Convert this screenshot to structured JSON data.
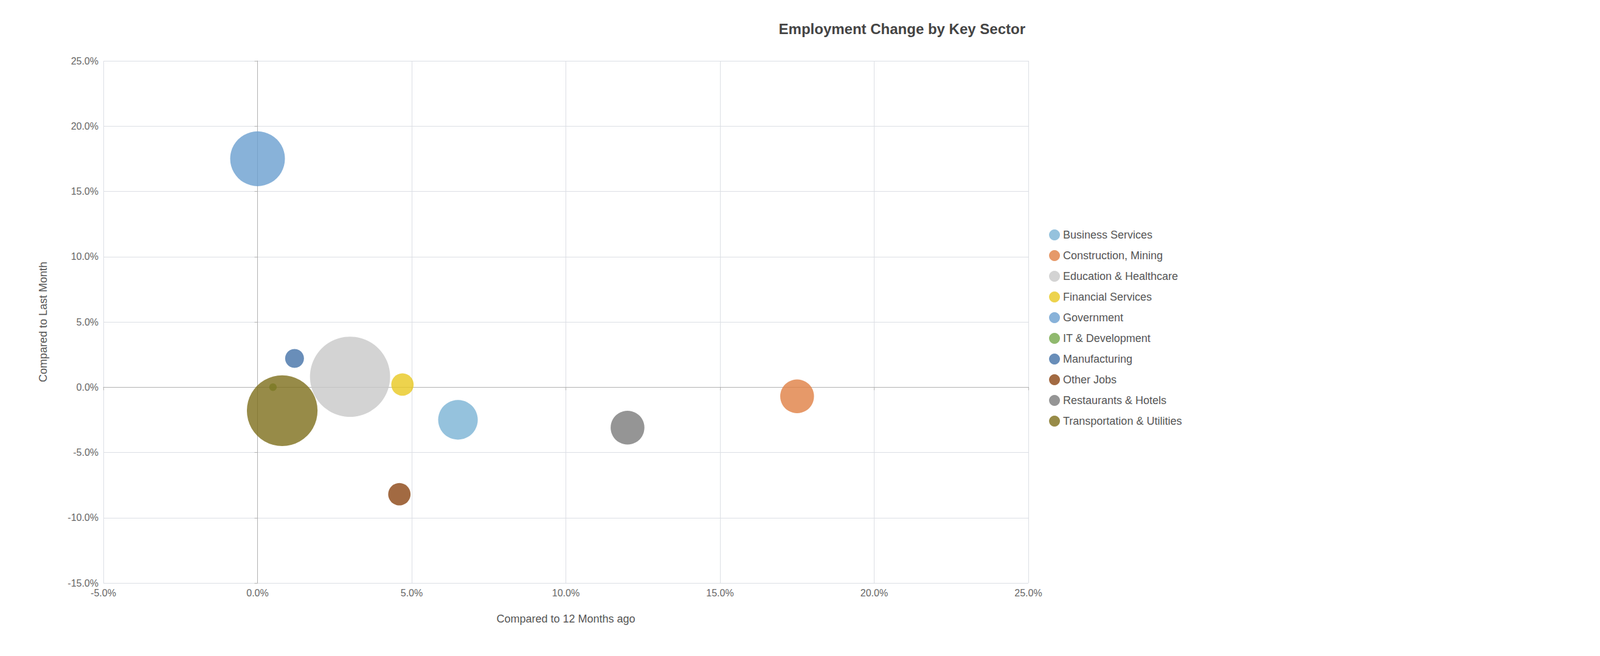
{
  "chart_data": {
    "type": "scatter",
    "title": "Employment Change by Key Sector",
    "xlabel": "Compared to 12 Months ago",
    "ylabel": "Compared to Last Month",
    "xlim": [
      -0.05,
      0.25
    ],
    "ylim": [
      -0.15,
      0.25
    ],
    "xticks": [
      {
        "value": -0.05,
        "label": "-5.0%"
      },
      {
        "value": 0.0,
        "label": "0.0%"
      },
      {
        "value": 0.05,
        "label": "5.0%"
      },
      {
        "value": 0.1,
        "label": "10.0%"
      },
      {
        "value": 0.15,
        "label": "15.0%"
      },
      {
        "value": 0.2,
        "label": "20.0%"
      },
      {
        "value": 0.25,
        "label": "25.0%"
      }
    ],
    "yticks": [
      {
        "value": -0.15,
        "label": "-15.0%"
      },
      {
        "value": -0.1,
        "label": "-10.0%"
      },
      {
        "value": -0.05,
        "label": "-5.0%"
      },
      {
        "value": 0.0,
        "label": "0.0%"
      },
      {
        "value": 0.05,
        "label": "5.0%"
      },
      {
        "value": 0.1,
        "label": "10.0%"
      },
      {
        "value": 0.15,
        "label": "15.0%"
      },
      {
        "value": 0.2,
        "label": "20.0%"
      },
      {
        "value": 0.25,
        "label": "25.0%"
      }
    ],
    "grid": true,
    "legend": "right",
    "series": [
      {
        "name": "Business Services",
        "color": "#7ab3d4",
        "x": [
          0.065
        ],
        "values": [
          -0.025
        ],
        "sizes": [
          2200
        ]
      },
      {
        "name": "Construction, Mining",
        "color": "#e07f44",
        "x": [
          0.175
        ],
        "values": [
          -0.007
        ],
        "sizes": [
          1600
        ]
      },
      {
        "name": "Education & Healthcare",
        "color": "#c8c8c8",
        "x": [
          0.03
        ],
        "values": [
          0.008
        ],
        "sizes": [
          9000
        ]
      },
      {
        "name": "Financial Services",
        "color": "#e8c820",
        "x": [
          0.047
        ],
        "values": [
          0.002
        ],
        "sizes": [
          700
        ]
      },
      {
        "name": "Government",
        "color": "#6a9fd0",
        "x": [
          0.0
        ],
        "values": [
          0.175
        ],
        "sizes": [
          4200
        ]
      },
      {
        "name": "IT & Development",
        "color": "#74a84a",
        "x": [
          0.005
        ],
        "values": [
          0.0
        ],
        "sizes": [
          80
        ]
      },
      {
        "name": "Manufacturing",
        "color": "#4472a8",
        "x": [
          0.012
        ],
        "values": [
          0.022
        ],
        "sizes": [
          500
        ]
      },
      {
        "name": "Other Jobs",
        "color": "#8b4513",
        "x": [
          0.046
        ],
        "values": [
          -0.082
        ],
        "sizes": [
          700
        ]
      },
      {
        "name": "Restaurants & Hotels",
        "color": "#7a7a7a",
        "x": [
          0.12
        ],
        "values": [
          -0.031
        ],
        "sizes": [
          1600
        ]
      },
      {
        "name": "Transportation & Utilities",
        "color": "#7d6e1a",
        "x": [
          0.008
        ],
        "values": [
          -0.018
        ],
        "sizes": [
          7000
        ]
      }
    ]
  }
}
